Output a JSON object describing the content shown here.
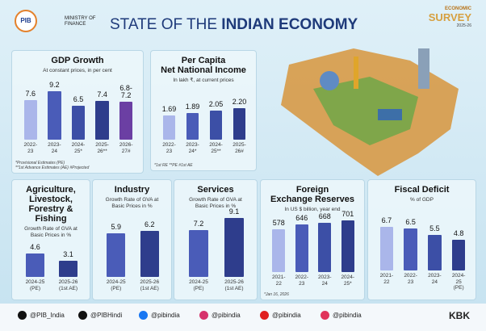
{
  "header": {
    "logo": "PIB",
    "ministry": "MINISTRY OF\nFINANCE",
    "title_light": "STATE OF THE",
    "title_bold": "INDIAN ECONOMY",
    "survey_line1": "ECONOMIC",
    "survey_line2": "SURVEY",
    "survey_year": "2025-26"
  },
  "chart_data": [
    {
      "type": "bar",
      "title": "GDP Growth",
      "subtitle": "At constant prices, in per cent",
      "categories": [
        "2022-\n23",
        "2023-\n24",
        "2024-\n25*",
        "2025-\n26**",
        "2026-\n27#"
      ],
      "values": [
        7.6,
        9.2,
        6.5,
        7.4,
        7.2
      ],
      "value_labels": [
        "7.6",
        "9.2",
        "6.5",
        "7.4",
        "6.8-\n7.2"
      ],
      "colors": [
        "#aab6ea",
        "#4a5cb8",
        "#3c4fa6",
        "#2e3d8c",
        "#6b3fa3"
      ],
      "ylim": [
        0,
        10
      ],
      "note": "*Provisional Estimates (PE)\n**1st Advance Estimates (AE) #Projected"
    },
    {
      "type": "bar",
      "title": "Per Capita\nNet National Income",
      "subtitle": "In lakh ₹, at current prices",
      "categories": [
        "2022-\n23",
        "2023-\n24*",
        "2024-\n25**",
        "2025-\n26#"
      ],
      "values": [
        1.69,
        1.89,
        2.05,
        2.2
      ],
      "value_labels": [
        "1.69",
        "1.89",
        "2.05",
        "2.20"
      ],
      "colors": [
        "#aab6ea",
        "#4a5cb8",
        "#3c4fa6",
        "#2e3d8c"
      ],
      "ylim": [
        0,
        3
      ],
      "note": "*1st RE  **PE  #1st AE"
    },
    {
      "type": "bar",
      "title": "Agriculture,\nLivestock,\nForestry &\nFishing",
      "subtitle": "Growth Rate of GVA at\nBasic Prices in %",
      "categories": [
        "2024-25\n(PE)",
        "2025-26\n(1st AE)"
      ],
      "values": [
        4.6,
        3.1
      ],
      "colors": [
        "#4a5cb8",
        "#2e3d8c"
      ],
      "ylim": [
        0,
        10
      ]
    },
    {
      "type": "bar",
      "title": "Industry",
      "subtitle": "Growth Rate of GVA at\nBasic Prices in %",
      "categories": [
        "2024-25\n(PE)",
        "2025-26\n(1st AE)"
      ],
      "values": [
        5.9,
        6.2
      ],
      "colors": [
        "#4a5cb8",
        "#2e3d8c"
      ],
      "ylim": [
        0,
        10
      ]
    },
    {
      "type": "bar",
      "title": "Services",
      "subtitle": "Growth Rate of GVA at\nBasic Prices in %",
      "categories": [
        "2024-25\n(PE)",
        "2025-26\n(1st AE)"
      ],
      "values": [
        7.2,
        9.1
      ],
      "colors": [
        "#4a5cb8",
        "#2e3d8c"
      ],
      "ylim": [
        0,
        12
      ]
    },
    {
      "type": "bar",
      "title": "Foreign\nExchange Reserves",
      "subtitle": "In US $ billion, year end",
      "categories": [
        "2021-\n22",
        "2022-\n23",
        "2023-\n24",
        "2024-\n25*"
      ],
      "values": [
        578,
        646,
        668,
        701
      ],
      "colors": [
        "#aab6ea",
        "#4a5cb8",
        "#3c4fa6",
        "#2e3d8c"
      ],
      "ylim": [
        0,
        1000
      ],
      "note": "*Jan 16, 2026"
    },
    {
      "type": "bar",
      "title": "Fiscal Deficit",
      "subtitle": "% of GDP",
      "categories": [
        "2021-\n22",
        "2022-\n23",
        "2023-\n24",
        "2024-\n25\n(PE)"
      ],
      "values": [
        6.7,
        6.5,
        5.5,
        4.8
      ],
      "colors": [
        "#aab6ea",
        "#4a5cb8",
        "#3c4fa6",
        "#2e3d8c"
      ],
      "ylim": [
        0,
        10
      ]
    }
  ],
  "footer": {
    "handles": [
      "@PIB_India",
      "@PIBHindi",
      "@pibindia",
      "@pibindia",
      "@pibindia",
      "@pibindia"
    ],
    "brand": "KBK"
  }
}
